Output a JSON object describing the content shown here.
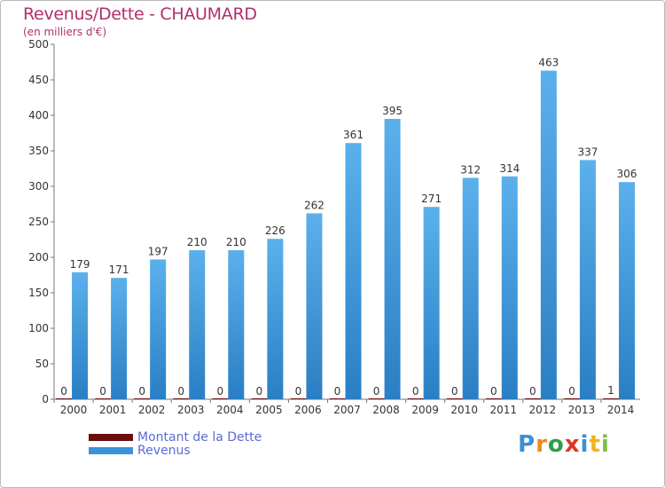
{
  "colors": {
    "title": "#b0306a",
    "revenus": "#3a92d8",
    "dette": "#6b0d0d",
    "legend_text": "#5a6bd6",
    "axis": "#777777",
    "grid": "#dddddd"
  },
  "logo": {
    "letters": [
      {
        "char": "P",
        "color": "#3c8fd6"
      },
      {
        "char": "r",
        "color": "#f08a1c"
      },
      {
        "char": "o",
        "color": "#2f9e4a"
      },
      {
        "char": "x",
        "color": "#e2342a"
      },
      {
        "char": "i",
        "color": "#3c8fd6"
      },
      {
        "char": "t",
        "color": "#f2b21f"
      },
      {
        "char": "i",
        "color": "#7cc043"
      }
    ]
  },
  "chart_data": {
    "type": "bar",
    "title": "Revenus/Dette - CHAUMARD",
    "subtitle": "(en milliers d'€)",
    "categories": [
      "2000",
      "2001",
      "2002",
      "2003",
      "2004",
      "2005",
      "2006",
      "2007",
      "2008",
      "2009",
      "2010",
      "2011",
      "2012",
      "2013",
      "2014"
    ],
    "series": [
      {
        "name": "Montant de la Dette",
        "values": [
          0,
          0,
          0,
          0,
          0,
          0,
          0,
          0,
          0,
          0,
          0,
          0,
          0,
          0,
          1
        ]
      },
      {
        "name": "Revenus",
        "values": [
          179,
          171,
          197,
          210,
          210,
          226,
          262,
          361,
          395,
          271,
          312,
          314,
          463,
          337,
          306
        ]
      }
    ],
    "ylim": [
      0,
      500
    ],
    "yticks": [
      0,
      50,
      100,
      150,
      200,
      250,
      300,
      350,
      400,
      450,
      500
    ],
    "grid": false,
    "legend": "bottom-left"
  }
}
